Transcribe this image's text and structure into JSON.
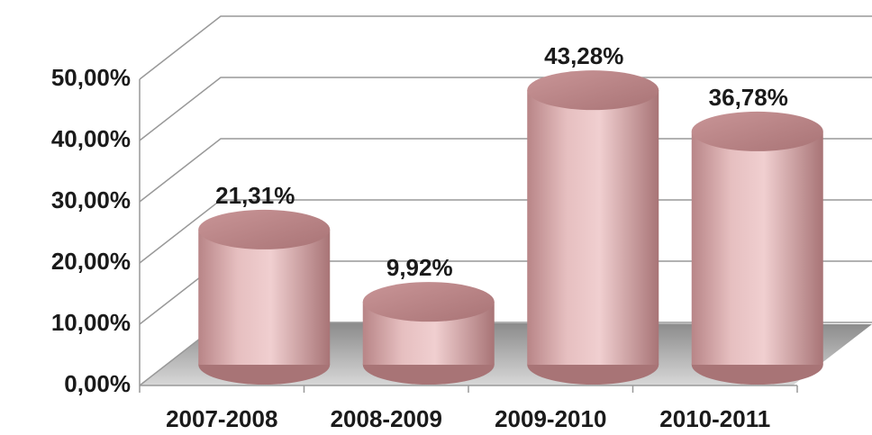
{
  "chart_data": {
    "type": "bar",
    "categories": [
      "2007-2008",
      "2008-2009",
      "2009-2010",
      "2010-2011"
    ],
    "values": [
      21.31,
      9.92,
      43.28,
      36.78
    ],
    "value_labels": [
      "21,31%",
      "9,92%",
      "43,28%",
      "36,78%"
    ],
    "color": "#d9a9ab",
    "ylim": [
      0,
      50
    ],
    "yticks": [
      {
        "value": 0,
        "label": "0,00%"
      },
      {
        "value": 10,
        "label": "10,00%"
      },
      {
        "value": 20,
        "label": "20,00%"
      },
      {
        "value": 30,
        "label": "30,00%"
      },
      {
        "value": 40,
        "label": "40,00%"
      },
      {
        "value": 50,
        "label": "50,00%"
      }
    ],
    "grid": true
  }
}
